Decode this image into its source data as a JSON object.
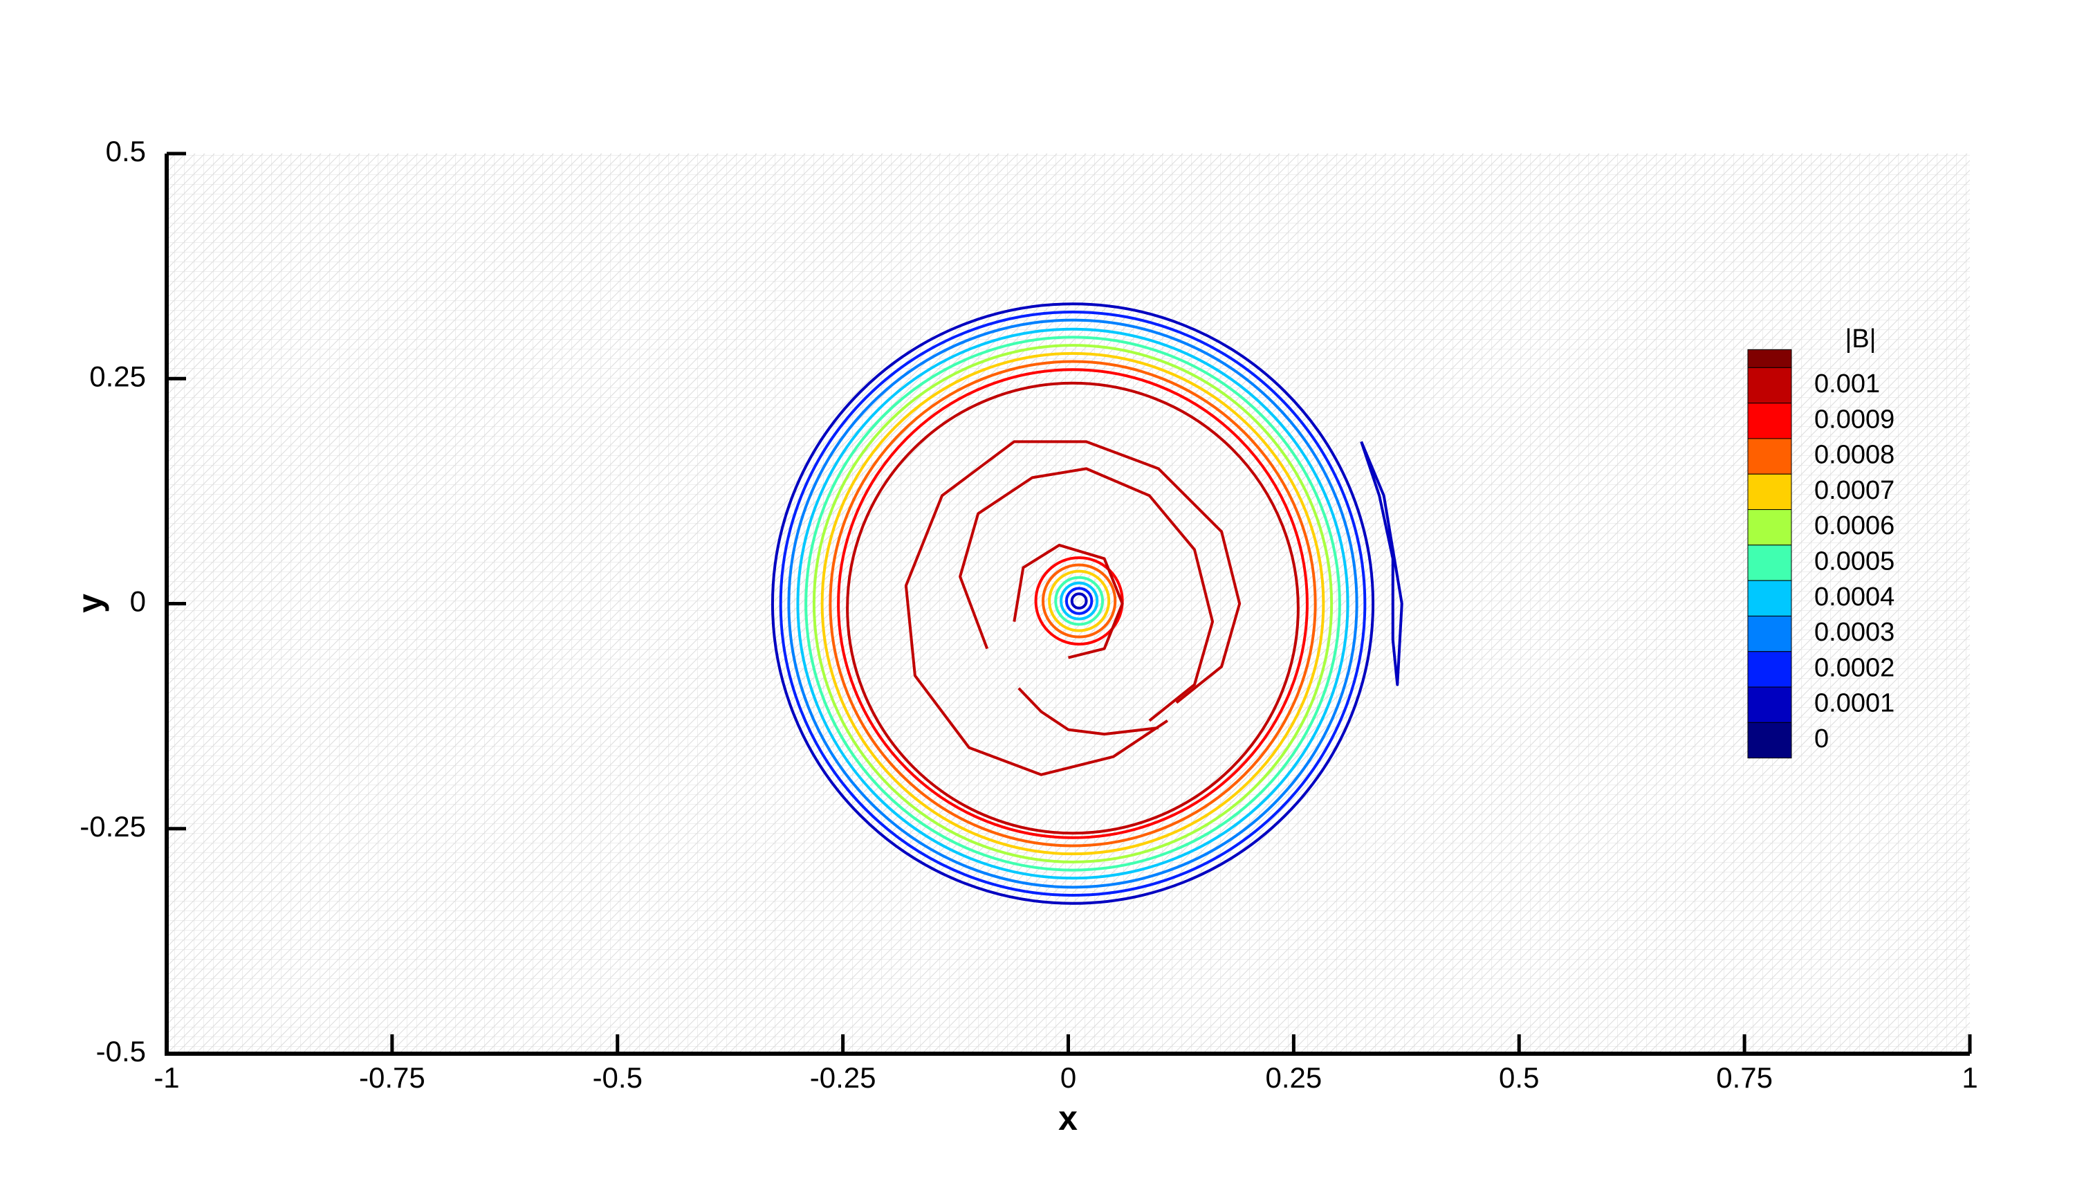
{
  "chart_data": {
    "type": "contour",
    "xlabel": "x",
    "ylabel": "y",
    "xlim": [
      -1,
      1
    ],
    "ylim": [
      -0.5,
      0.5
    ],
    "xticks": [
      -1,
      -0.75,
      -0.5,
      -0.25,
      0,
      0.25,
      0.5,
      0.75,
      1
    ],
    "yticks": [
      -0.5,
      -0.25,
      0,
      0.25,
      0.5
    ],
    "colorbar": {
      "title": "|B|",
      "above_color": "#800000",
      "levels": [
        {
          "level": 0.001,
          "color": "#c00000"
        },
        {
          "level": 0.0009,
          "color": "#ff0000"
        },
        {
          "level": 0.0008,
          "color": "#ff6000"
        },
        {
          "level": 0.0007,
          "color": "#ffd000"
        },
        {
          "level": 0.0006,
          "color": "#a8ff40"
        },
        {
          "level": 0.0005,
          "color": "#40ffb0"
        },
        {
          "level": 0.0004,
          "color": "#00c8ff"
        },
        {
          "level": 0.0003,
          "color": "#0080ff"
        },
        {
          "level": 0.0002,
          "color": "#0020ff"
        },
        {
          "level": 0.0001,
          "color": "#0000c0"
        },
        {
          "level": 0,
          "color": "#00007f"
        }
      ]
    },
    "rings": [
      {
        "level": 0.0001,
        "cx": 0.005,
        "cy": 0,
        "r": 0.333
      },
      {
        "level": 0.0002,
        "cx": 0.005,
        "cy": 0,
        "r": 0.324
      },
      {
        "level": 0.0003,
        "cx": 0.005,
        "cy": 0,
        "r": 0.315
      },
      {
        "level": 0.0004,
        "cx": 0.005,
        "cy": 0,
        "r": 0.305
      },
      {
        "level": 0.0005,
        "cx": 0.005,
        "cy": 0,
        "r": 0.296
      },
      {
        "level": 0.0006,
        "cx": 0.005,
        "cy": 0,
        "r": 0.287
      },
      {
        "level": 0.0007,
        "cx": 0.005,
        "cy": 0,
        "r": 0.278
      },
      {
        "level": 0.0008,
        "cx": 0.005,
        "cy": 0,
        "r": 0.269
      },
      {
        "level": 0.0009,
        "cx": 0.005,
        "cy": 0,
        "r": 0.26
      },
      {
        "level": 0.001,
        "cx": 0.005,
        "cy": -0.005,
        "r": 0.25
      },
      {
        "level": 0.0009,
        "cx": 0.012,
        "cy": 0.003,
        "r": 0.048
      },
      {
        "level": 0.0008,
        "cx": 0.012,
        "cy": 0.003,
        "r": 0.04
      },
      {
        "level": 0.0007,
        "cx": 0.012,
        "cy": 0.003,
        "r": 0.033
      },
      {
        "level": 0.0005,
        "cx": 0.012,
        "cy": 0.003,
        "r": 0.026
      },
      {
        "level": 0.0004,
        "cx": 0.012,
        "cy": 0.003,
        "r": 0.02
      },
      {
        "level": 0.0002,
        "cx": 0.012,
        "cy": 0.003,
        "r": 0.014
      },
      {
        "level": 0.0001,
        "cx": 0.012,
        "cy": 0.003,
        "r": 0.008
      }
    ],
    "paths": [
      {
        "level": 0.001,
        "x": [
          0.11,
          0.05,
          -0.03,
          -0.11,
          -0.17,
          -0.18,
          -0.14,
          -0.06,
          0.02,
          0.1,
          0.17,
          0.19,
          0.17,
          0.12
        ],
        "y": [
          -0.13,
          -0.17,
          -0.19,
          -0.16,
          -0.08,
          0.02,
          0.12,
          0.18,
          0.18,
          0.15,
          0.08,
          0.0,
          -0.07,
          -0.11
        ]
      },
      {
        "level": 0.001,
        "x": [
          -0.09,
          -0.12,
          -0.1,
          -0.04,
          0.02,
          0.09,
          0.14,
          0.16,
          0.14,
          0.09
        ],
        "y": [
          -0.05,
          0.03,
          0.1,
          0.14,
          0.15,
          0.12,
          0.06,
          -0.02,
          -0.09,
          -0.13
        ]
      },
      {
        "level": 0.001,
        "x": [
          -0.055,
          -0.03,
          0.0,
          0.04,
          0.1
        ],
        "y": [
          -0.094,
          -0.12,
          -0.14,
          -0.145,
          -0.138
        ]
      },
      {
        "level": 0.001,
        "x": [
          -0.06,
          -0.05,
          -0.01,
          0.04,
          0.06,
          0.04,
          0.0
        ],
        "y": [
          -0.02,
          0.04,
          0.065,
          0.05,
          0.0,
          -0.05,
          -0.06
        ]
      },
      {
        "level": 0.0001,
        "x": [
          0.325,
          0.35,
          0.37,
          0.365,
          0.36,
          0.36,
          0.345,
          0.325
        ],
        "y": [
          0.18,
          0.12,
          0.0,
          -0.09,
          -0.04,
          0.05,
          0.12,
          0.18
        ]
      }
    ]
  }
}
